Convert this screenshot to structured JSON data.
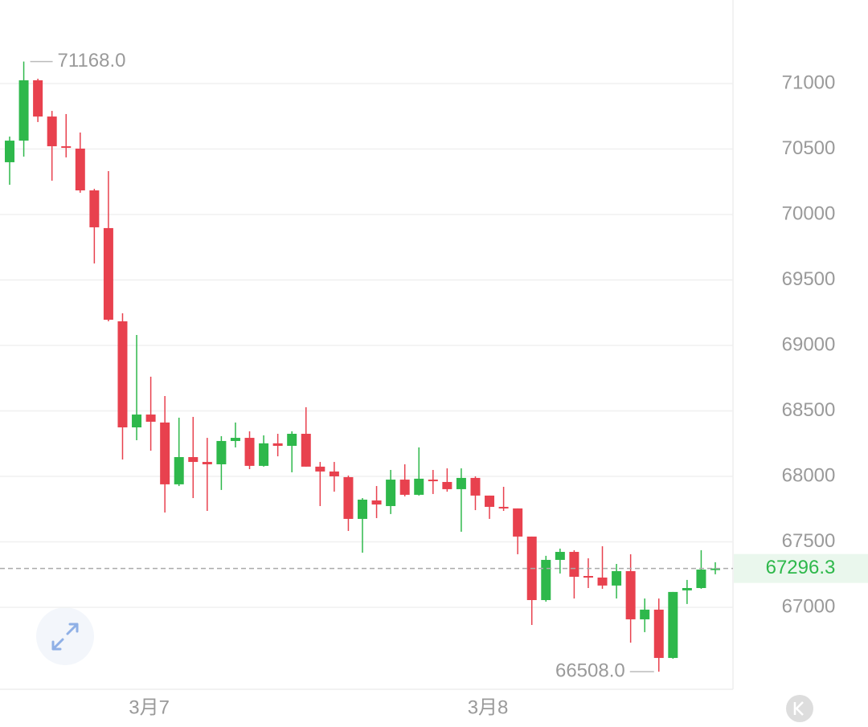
{
  "chart_data": {
    "type": "candlestick",
    "categories": [
      null,
      null,
      null,
      null,
      null,
      null,
      null,
      null,
      null,
      null,
      "3月7",
      null,
      null,
      null,
      null,
      null,
      null,
      null,
      null,
      null,
      null,
      null,
      null,
      null,
      null,
      null,
      null,
      null,
      null,
      null,
      null,
      null,
      null,
      null,
      "3月8",
      null,
      null,
      null,
      null,
      null,
      null,
      null,
      null,
      null,
      null,
      null,
      null,
      null,
      null,
      null,
      null
    ],
    "open": [
      70399,
      70564,
      71025,
      70748,
      70521,
      70503,
      70184,
      69896,
      69184,
      68374,
      68472,
      68411,
      67939,
      68147,
      68110,
      68092,
      68270,
      68294,
      68080,
      68252,
      68233,
      68325,
      68074,
      68037,
      67994,
      67675,
      67816,
      67773,
      67975,
      67859,
      67975,
      67957,
      67902,
      67988,
      67853,
      67767,
      67755,
      67540,
      67055,
      67362,
      67423,
      67239,
      67227,
      67166,
      67276,
      66908,
      66982,
      66613,
      67129,
      67147,
      67288
    ],
    "high": [
      70595,
      71168,
      71037,
      70791,
      70767,
      70626,
      70196,
      70331,
      69245,
      69080,
      68761,
      68613,
      68448,
      68454,
      68294,
      68307,
      68411,
      68344,
      68313,
      68325,
      68344,
      68528,
      68110,
      68110,
      68006,
      67834,
      67926,
      68049,
      68092,
      68221,
      68049,
      68061,
      68061,
      68000,
      67853,
      67920,
      67755,
      67540,
      67393,
      67448,
      67436,
      67374,
      67466,
      67331,
      67405,
      67067,
      67067,
      67117,
      67209,
      67436,
      67344
    ],
    "low": [
      70227,
      70442,
      70706,
      70258,
      70436,
      70166,
      69626,
      69184,
      68129,
      68276,
      68196,
      67724,
      67926,
      67834,
      67736,
      67896,
      68221,
      68055,
      68074,
      68153,
      68031,
      68074,
      67773,
      67883,
      67583,
      67417,
      67681,
      67712,
      67847,
      67853,
      67865,
      67883,
      67577,
      67742,
      67675,
      67736,
      67405,
      66865,
      67043,
      67258,
      67067,
      67147,
      67141,
      67067,
      66730,
      66810,
      66508,
      66607,
      67025,
      67141,
      67252
    ],
    "close": [
      70564,
      71025,
      70748,
      70521,
      70509,
      70184,
      69902,
      69196,
      68374,
      68472,
      68417,
      67939,
      68147,
      68110,
      68092,
      68270,
      68294,
      68080,
      68252,
      68233,
      68325,
      68074,
      68037,
      68000,
      67675,
      67822,
      67785,
      67975,
      67859,
      67982,
      67963,
      67902,
      67988,
      67853,
      67767,
      67755,
      67540,
      67055,
      67362,
      67423,
      67233,
      67227,
      67166,
      67276,
      66908,
      66982,
      66613,
      67117,
      67147,
      67288,
      67296.3
    ],
    "up_color": "#2eb84b",
    "down_color": "#e8414e",
    "ylim": [
      66374,
      71638
    ],
    "yticks": [
      67000,
      67500,
      68000,
      68500,
      69000,
      69500,
      70000,
      70500,
      71000
    ],
    "grid": true,
    "high_label": {
      "value": 71168,
      "label": "71168.0"
    },
    "low_label": {
      "value": 66508,
      "label": "66508.0"
    },
    "last_price": {
      "value": 67296.3,
      "label": "67296.3"
    }
  }
}
